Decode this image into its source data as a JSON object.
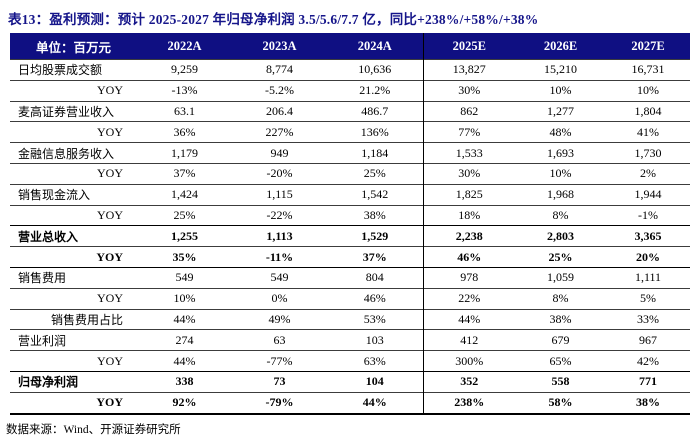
{
  "title": "表13：盈利预测：预计 2025-2027 年归母净利润 3.5/5.6/7.7 亿，同比+238%/+58%/+38%",
  "footer": "数据来源：Wind、开源证券研究所",
  "colors": {
    "title_navy": "#15158a",
    "header_bg": "#0f0f82",
    "header_text": "#ffffff"
  },
  "table": {
    "unit_header": "单位：百万元",
    "columns": [
      "2022A",
      "2023A",
      "2024A",
      "2025E",
      "2026E",
      "2027E"
    ],
    "rows": [
      {
        "label": "日均股票成交额",
        "align": "left",
        "bold": false,
        "values": [
          "9,259",
          "8,774",
          "10,636",
          "13,827",
          "15,210",
          "16,731"
        ]
      },
      {
        "label": "YOY",
        "align": "right",
        "bold": false,
        "values": [
          "-13%",
          "-5.2%",
          "21.2%",
          "30%",
          "10%",
          "10%"
        ]
      },
      {
        "label": "麦高证券营业收入",
        "align": "left",
        "bold": false,
        "values": [
          "63.1",
          "206.4",
          "486.7",
          "862",
          "1,277",
          "1,804"
        ]
      },
      {
        "label": "YOY",
        "align": "right",
        "bold": false,
        "values": [
          "36%",
          "227%",
          "136%",
          "77%",
          "48%",
          "41%"
        ]
      },
      {
        "label": "金融信息服务收入",
        "align": "left",
        "bold": false,
        "values": [
          "1,179",
          "949",
          "1,184",
          "1,533",
          "1,693",
          "1,730"
        ]
      },
      {
        "label": "YOY",
        "align": "right",
        "bold": false,
        "values": [
          "37%",
          "-20%",
          "25%",
          "30%",
          "10%",
          "2%"
        ]
      },
      {
        "label": "销售现金流入",
        "align": "left",
        "bold": false,
        "values": [
          "1,424",
          "1,115",
          "1,542",
          "1,825",
          "1,968",
          "1,944"
        ]
      },
      {
        "label": "YOY",
        "align": "right",
        "bold": false,
        "values": [
          "25%",
          "-22%",
          "38%",
          "18%",
          "8%",
          "-1%"
        ]
      },
      {
        "label": "营业总收入",
        "align": "left",
        "bold": true,
        "values": [
          "1,255",
          "1,113",
          "1,529",
          "2,238",
          "2,803",
          "3,365"
        ]
      },
      {
        "label": "YOY",
        "align": "right",
        "bold": true,
        "values": [
          "35%",
          "-11%",
          "37%",
          "46%",
          "25%",
          "20%"
        ]
      },
      {
        "label": "销售费用",
        "align": "left",
        "bold": false,
        "values": [
          "549",
          "549",
          "804",
          "978",
          "1,059",
          "1,111"
        ]
      },
      {
        "label": "YOY",
        "align": "right",
        "bold": false,
        "values": [
          "10%",
          "0%",
          "46%",
          "22%",
          "8%",
          "5%"
        ]
      },
      {
        "label": "销售费用占比",
        "align": "right",
        "bold": false,
        "values": [
          "44%",
          "49%",
          "53%",
          "44%",
          "38%",
          "33%"
        ]
      },
      {
        "label": "营业利润",
        "align": "left",
        "bold": false,
        "values": [
          "274",
          "63",
          "103",
          "412",
          "679",
          "967"
        ]
      },
      {
        "label": "YOY",
        "align": "right",
        "bold": false,
        "values": [
          "44%",
          "-77%",
          "63%",
          "300%",
          "65%",
          "42%"
        ]
      },
      {
        "label": "归母净利润",
        "align": "left",
        "bold": true,
        "values": [
          "338",
          "73",
          "104",
          "352",
          "558",
          "771"
        ]
      },
      {
        "label": "YOY",
        "align": "right",
        "bold": true,
        "values": [
          "92%",
          "-79%",
          "44%",
          "238%",
          "58%",
          "38%"
        ]
      }
    ]
  }
}
